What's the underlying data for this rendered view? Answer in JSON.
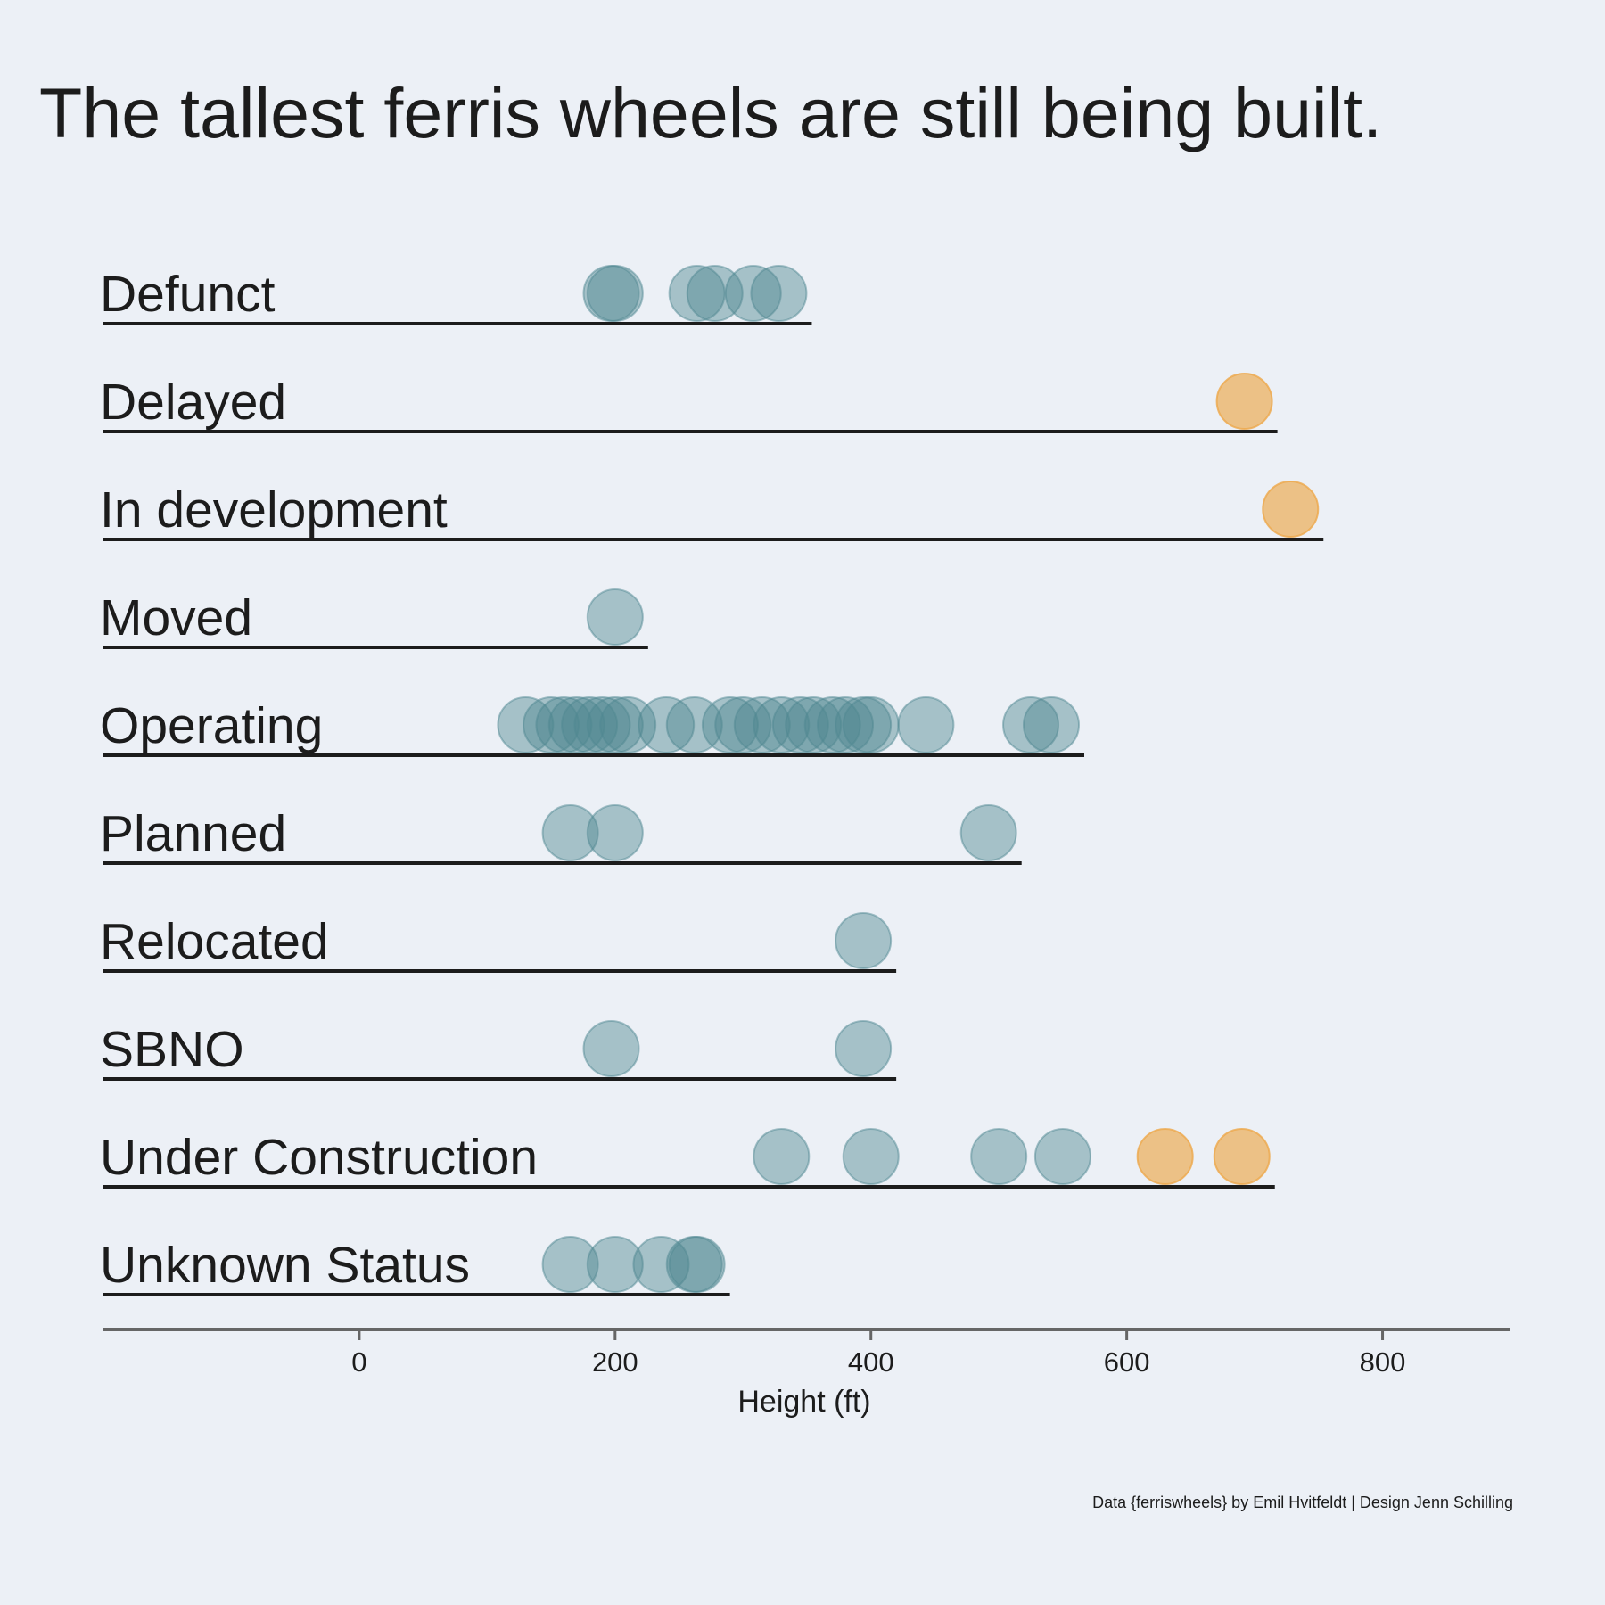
{
  "chart_data": {
    "type": "scatter",
    "title": "The tallest ferris wheels are still being built.",
    "xlabel": "Height (ft)",
    "ylabel": "",
    "xlim": [
      -200,
      900
    ],
    "xticks": [
      0,
      200,
      400,
      600,
      800
    ],
    "grid": false,
    "caption": "Data {ferriswheels} by Emil Hvitfeldt | Design Jenn Schilling",
    "colors": {
      "default": "#4f8791",
      "highlight": "#eda84a",
      "text": "#1c1c1c",
      "axis": "#666666",
      "background": "#ecf0f6"
    },
    "categories": [
      "Defunct",
      "Delayed",
      "In development",
      "Moved",
      "Operating",
      "Planned",
      "Relocated",
      "SBNO",
      "Under Construction",
      "Unknown Status"
    ],
    "series": [
      {
        "category": "Defunct",
        "heights": [
          197,
          200,
          264,
          278,
          308,
          328
        ],
        "highlight": [
          false,
          false,
          false,
          false,
          false,
          false
        ]
      },
      {
        "category": "Delayed",
        "heights": [
          692
        ],
        "highlight": [
          true
        ]
      },
      {
        "category": "In development",
        "heights": [
          728
        ],
        "highlight": [
          true
        ]
      },
      {
        "category": "Moved",
        "heights": [
          200
        ],
        "highlight": [
          false
        ]
      },
      {
        "category": "Operating",
        "heights": [
          130,
          150,
          160,
          170,
          180,
          190,
          200,
          210,
          240,
          262,
          290,
          300,
          315,
          330,
          345,
          355,
          370,
          380,
          394,
          400,
          443,
          525,
          541
        ],
        "highlight": [
          false,
          false,
          false,
          false,
          false,
          false,
          false,
          false,
          false,
          false,
          false,
          false,
          false,
          false,
          false,
          false,
          false,
          false,
          false,
          false,
          false,
          false,
          false
        ]
      },
      {
        "category": "Planned",
        "heights": [
          165,
          200,
          492
        ],
        "highlight": [
          false,
          false,
          false
        ]
      },
      {
        "category": "Relocated",
        "heights": [
          394
        ],
        "highlight": [
          false
        ]
      },
      {
        "category": "SBNO",
        "heights": [
          197,
          394
        ],
        "highlight": [
          false,
          false
        ]
      },
      {
        "category": "Under Construction",
        "heights": [
          330,
          400,
          500,
          550,
          630,
          690
        ],
        "highlight": [
          false,
          false,
          false,
          false,
          true,
          true
        ]
      },
      {
        "category": "Unknown Status",
        "heights": [
          165,
          200,
          236,
          262,
          264
        ],
        "highlight": [
          false,
          false,
          false,
          false,
          false
        ]
      }
    ]
  }
}
